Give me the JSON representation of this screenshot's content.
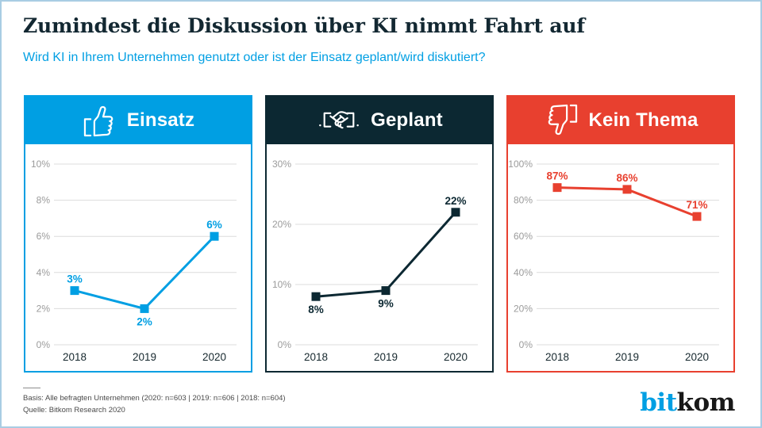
{
  "header": {
    "title": "Zumindest die Diskussion über KI nimmt Fahrt auf",
    "subtitle": "Wird KI in Ihrem Unternehmen genutzt oder ist der Einsatz geplant/wird diskutiert?"
  },
  "chart_data": [
    {
      "type": "line",
      "title": "Einsatz",
      "icon": "thumbs-up",
      "accent": "#009fe3",
      "categories": [
        "2018",
        "2019",
        "2020"
      ],
      "values": [
        3,
        2,
        6
      ],
      "unit": "%",
      "ylim": [
        0,
        10
      ],
      "yticks": [
        0,
        2,
        4,
        6,
        8,
        10
      ],
      "label_positions": [
        "above",
        "below",
        "above"
      ],
      "grid": true,
      "legend": "none"
    },
    {
      "type": "line",
      "title": "Geplant",
      "icon": "handshake",
      "accent": "#0c2832",
      "categories": [
        "2018",
        "2019",
        "2020"
      ],
      "values": [
        8,
        9,
        22
      ],
      "unit": "%",
      "ylim": [
        0,
        30
      ],
      "yticks": [
        0,
        10,
        20,
        30
      ],
      "label_positions": [
        "below",
        "below",
        "above"
      ],
      "grid": true,
      "legend": "none"
    },
    {
      "type": "line",
      "title": "Kein Thema",
      "icon": "thumbs-down",
      "accent": "#e8402f",
      "categories": [
        "2018",
        "2019",
        "2020"
      ],
      "values": [
        87,
        86,
        71
      ],
      "unit": "%",
      "ylim": [
        0,
        100
      ],
      "yticks": [
        0,
        20,
        40,
        60,
        80,
        100
      ],
      "label_positions": [
        "above",
        "above",
        "above"
      ],
      "grid": true,
      "legend": "none"
    }
  ],
  "footer": {
    "basis": "Basis: Alle befragten Unternehmen (2020: n=603 | 2019: n=606 | 2018: n=604)",
    "quelle": "Quelle: Bitkom Research 2020",
    "logo_part1": "bit",
    "logo_part2": "kom"
  },
  "colors": {
    "blue": "#009fe3",
    "navy": "#0c2832",
    "red": "#e8402f",
    "title_text": "#132832",
    "subtitle_text": "#009fe3",
    "gridline": "#dcdcdc",
    "ytick_label": "#9b9b9b",
    "xtick_label": "#16282e",
    "outer_border": "#a9cde3",
    "footer_text": "#4a4a4a",
    "logo_kom": "#181818"
  }
}
